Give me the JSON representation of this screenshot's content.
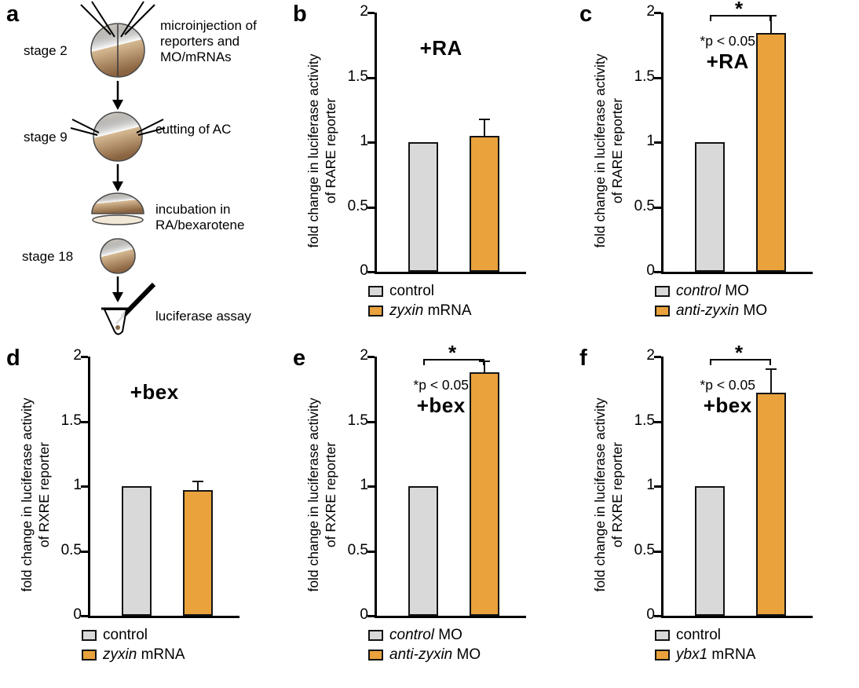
{
  "colors": {
    "control_fill": "#d9d9d9",
    "treatment_fill": "#e9a23c",
    "axis": "#000000"
  },
  "panel_a": {
    "letter": "a",
    "stage2_label": "stage 2",
    "stage9_label": "stage 9",
    "stage18_label": "stage 18",
    "microinjection_line1": "microinjection of",
    "microinjection_line2": "reporters and",
    "microinjection_line3": "MO/mRNAs",
    "cutting_label": "cutting of AC",
    "incubation_line1": "incubation in",
    "incubation_line2": "RA/bexarotene",
    "assay_label": "luciferase assay"
  },
  "chart_data": [
    {
      "type": "bar",
      "panel": "b",
      "condition": "+RA",
      "p_note": "",
      "significance": false,
      "ylabel_line1": "fold change in luciferase activity",
      "ylabel_line2": "of RARE reporter",
      "ylim": [
        0,
        2
      ],
      "yticks": [
        0,
        0.5,
        1,
        1.5,
        2
      ],
      "categories": [
        "control",
        "zyxin mRNA"
      ],
      "values": [
        1.0,
        1.05
      ],
      "errors": [
        0,
        0.12
      ],
      "legend": [
        {
          "italic": "",
          "text": "control",
          "color": "control"
        },
        {
          "italic": "zyxin",
          "text": " mRNA",
          "color": "treatment"
        }
      ]
    },
    {
      "type": "bar",
      "panel": "c",
      "condition": "+RA",
      "p_note": "*p < 0.05",
      "significance": true,
      "ylabel_line1": "fold change in luciferase activity",
      "ylabel_line2": "of RARE reporter",
      "ylim": [
        0,
        2
      ],
      "yticks": [
        0,
        0.5,
        1,
        1.5,
        2
      ],
      "categories": [
        "control MO",
        "anti-zyxin MO"
      ],
      "values": [
        1.0,
        1.84
      ],
      "errors": [
        0,
        0.13
      ],
      "legend": [
        {
          "italic": "control",
          "text": " MO",
          "color": "control"
        },
        {
          "italic": "anti-zyxin",
          "text": " MO",
          "color": "treatment"
        }
      ]
    },
    {
      "type": "bar",
      "panel": "d",
      "condition": "+bex",
      "p_note": "",
      "significance": false,
      "ylabel_line1": "fold change in luciferase activity",
      "ylabel_line2": "of RXRE reporter",
      "ylim": [
        0,
        2
      ],
      "yticks": [
        0,
        0.5,
        1,
        1.5,
        2
      ],
      "categories": [
        "control",
        "zyxin mRNA"
      ],
      "values": [
        1.0,
        0.97
      ],
      "errors": [
        0,
        0.06
      ],
      "legend": [
        {
          "italic": "",
          "text": "control",
          "color": "control"
        },
        {
          "italic": "zyxin",
          "text": " mRNA",
          "color": "treatment"
        }
      ]
    },
    {
      "type": "bar",
      "panel": "e",
      "condition": "+bex",
      "p_note": "*p < 0.05",
      "significance": true,
      "ylabel_line1": "fold change in luciferase activity",
      "ylabel_line2": "of RXRE reporter",
      "ylim": [
        0,
        2
      ],
      "yticks": [
        0,
        0.5,
        1,
        1.5,
        2
      ],
      "categories": [
        "control MO",
        "anti-zyxin MO"
      ],
      "values": [
        1.0,
        1.88
      ],
      "errors": [
        0,
        0.08
      ],
      "legend": [
        {
          "italic": "control",
          "text": " MO",
          "color": "control"
        },
        {
          "italic": "anti-zyxin",
          "text": " MO",
          "color": "treatment"
        }
      ]
    },
    {
      "type": "bar",
      "panel": "f",
      "condition": "+bex",
      "p_note": "*p < 0.05",
      "significance": true,
      "ylabel_line1": "fold change in luciferase activity",
      "ylabel_line2": "of RXRE reporter",
      "ylim": [
        0,
        2
      ],
      "yticks": [
        0,
        0.5,
        1,
        1.5,
        2
      ],
      "categories": [
        "control",
        "ybx1 mRNA"
      ],
      "values": [
        1.0,
        1.72
      ],
      "errors": [
        0,
        0.18
      ],
      "legend": [
        {
          "italic": "",
          "text": "control",
          "color": "control"
        },
        {
          "italic": "ybx1",
          "text": " mRNA",
          "color": "treatment"
        }
      ]
    }
  ]
}
